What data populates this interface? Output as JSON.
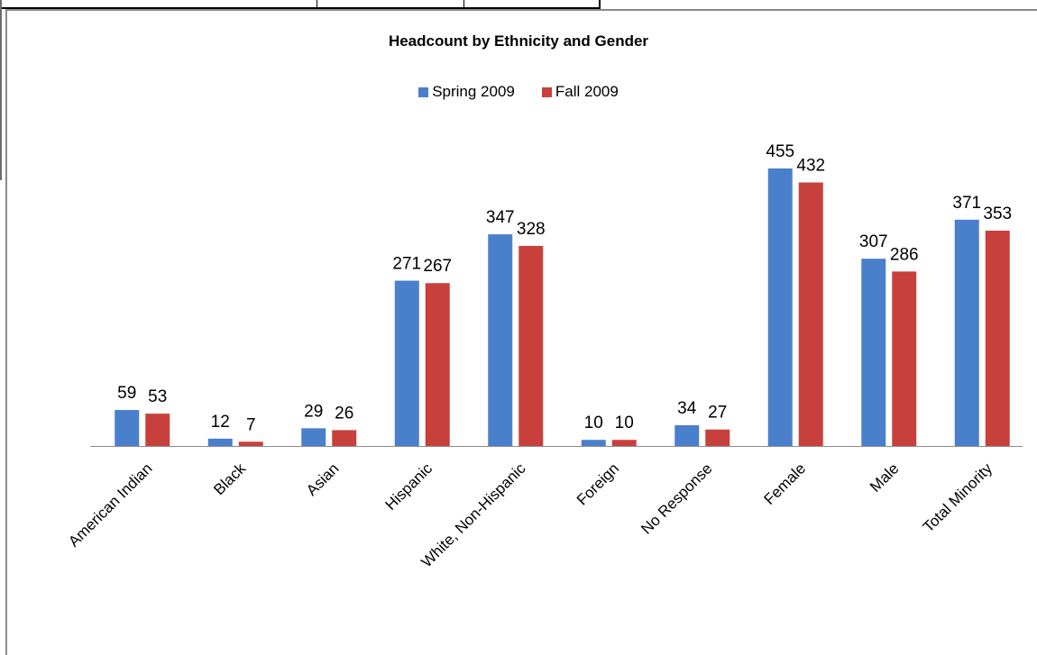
{
  "chart_data": {
    "type": "bar",
    "title": "Headcount by Ethnicity and Gender",
    "categories": [
      "American Indian",
      "Black",
      "Asian",
      "Hispanic",
      "White, Non-Hispanic",
      "Foreign",
      "No Response",
      "Female",
      "Male",
      "Total Minority"
    ],
    "series": [
      {
        "name": "Spring 2009",
        "color": "#4a7fcc",
        "values": [
          59,
          12,
          29,
          271,
          347,
          10,
          34,
          455,
          307,
          371
        ]
      },
      {
        "name": "Fall 2009",
        "color": "#c8403c",
        "values": [
          53,
          7,
          26,
          267,
          328,
          10,
          27,
          432,
          286,
          353
        ]
      }
    ],
    "xlabel": "",
    "ylabel": "",
    "ylim": [
      0,
      500
    ],
    "legend": "top",
    "grid": false
  }
}
